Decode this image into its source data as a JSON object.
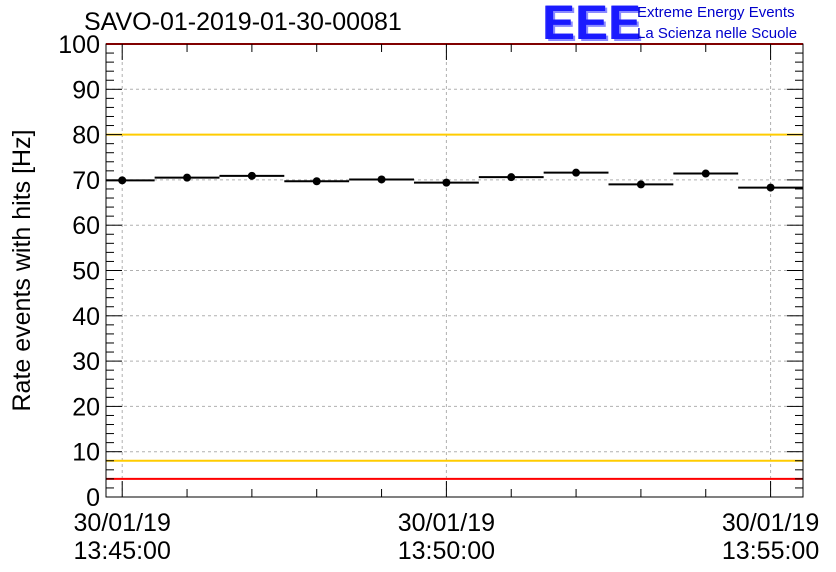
{
  "header": {
    "run_title": "SAVO-01-2019-01-30-00081",
    "logo_mark": "EEE",
    "logo_line1": "Extreme Energy Events",
    "logo_line2": "La Scienza nelle Scuole"
  },
  "colors": {
    "red_line": "#ff0000",
    "yellow_line": "#ffcc00",
    "marker": "#000000",
    "grid": "#b0b0b0"
  },
  "chart_data": {
    "type": "scatter",
    "title": "SAVO-01-2019-01-30-00081",
    "ylabel": "Rate events with hits [Hz]",
    "xlabel": "",
    "ylim": [
      0,
      100
    ],
    "yticks": [
      0,
      10,
      20,
      30,
      40,
      50,
      60,
      70,
      80,
      90,
      100
    ],
    "xlim_minutes": [
      -0.25,
      10.5
    ],
    "xticks": [
      {
        "minutes": 0,
        "label_date": "30/01/19",
        "label_time": "13:45:00"
      },
      {
        "minutes": 5,
        "label_date": "30/01/19",
        "label_time": "13:50:00"
      },
      {
        "minutes": 10,
        "label_date": "30/01/19",
        "label_time": "13:55:00"
      }
    ],
    "reference_lines": [
      {
        "value": 100,
        "color": "red"
      },
      {
        "value": 80,
        "color": "yellow"
      },
      {
        "value": 8,
        "color": "yellow"
      },
      {
        "value": 4,
        "color": "red"
      }
    ],
    "series": [
      {
        "name": "Rate events with hits",
        "bin_width_minutes": 1,
        "x_minutes": [
          0,
          1,
          2,
          3,
          4,
          5,
          6,
          7,
          8,
          9,
          10
        ],
        "values": [
          69.9,
          70.5,
          70.9,
          69.7,
          70.1,
          69.4,
          70.6,
          71.6,
          69.0,
          71.4,
          68.3
        ]
      }
    ]
  }
}
